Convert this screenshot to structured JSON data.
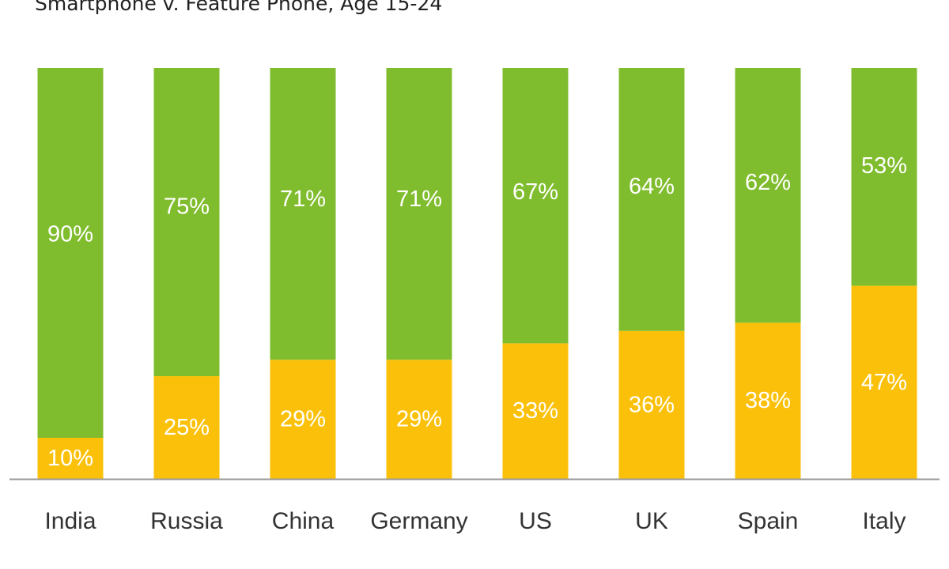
{
  "header": {
    "subtitle": "Smartphone v. Feature Phone, Age 15-24"
  },
  "colors": {
    "smartphone": "#80bd2e",
    "feature_phone": "#fbc10a",
    "axis": "#9a9a9a",
    "label_text": "#ffffff",
    "category_text": "#333333"
  },
  "chart_data": {
    "type": "bar",
    "stacked": true,
    "percent_stacked": true,
    "subtitle": "Smartphone v. Feature Phone, Age 15-24",
    "categories": [
      "India",
      "Russia",
      "China",
      "Germany",
      "US",
      "UK",
      "Spain",
      "Italy"
    ],
    "series": [
      {
        "values": [
          10,
          25,
          29,
          29,
          33,
          36,
          38,
          47
        ],
        "color": "#fbc10a"
      },
      {
        "values": [
          90,
          75,
          71,
          71,
          67,
          64,
          62,
          53
        ],
        "color": "#80bd2e"
      }
    ],
    "value_suffix": "%",
    "ylim": [
      0,
      100
    ],
    "grid": false,
    "legend": "none"
  }
}
